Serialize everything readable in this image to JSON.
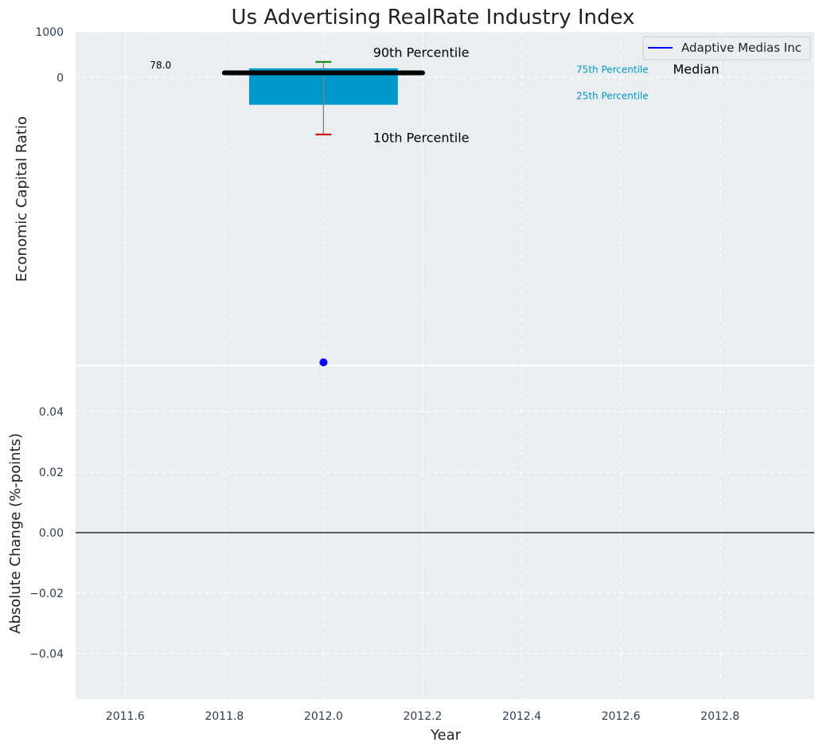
{
  "chart_data": [
    {
      "type": "boxplot",
      "panel": "top",
      "title": "Us Advertising RealRate Industry Index",
      "xlabel": "",
      "ylabel": "Economic Capital Ratio",
      "xlim": [
        2011.5,
        2012.99
      ],
      "ylim": [
        -6300,
        1000
      ],
      "y_ticks": [
        1000,
        0
      ],
      "grid": true,
      "box": {
        "x": 2012.0,
        "q1": -600,
        "q3": 200,
        "half_width": 0.15
      },
      "median": {
        "x_start": 2011.8,
        "x_end": 2012.2,
        "value": 100
      },
      "whiskers": {
        "p10": -1250,
        "p90": 340
      },
      "company_point": {
        "x": 2012.0,
        "value": -6250
      },
      "annotations": [
        {
          "text": "78.0",
          "x": 2011.65,
          "y": 200,
          "color": "#000000",
          "size": "small"
        },
        {
          "text": "90th Percentile",
          "x": 2012.1,
          "y": 450,
          "color": "#000000",
          "size": "large"
        },
        {
          "text": "10th Percentile",
          "x": 2012.1,
          "y": -1420,
          "color": "#000000",
          "size": "large"
        },
        {
          "text": "75th Percentile",
          "x": 2012.51,
          "y": 100,
          "color": "#0099c6",
          "size": "small"
        },
        {
          "text": "25th Percentile",
          "x": 2012.51,
          "y": -480,
          "color": "#0099c6",
          "size": "small"
        },
        {
          "text": "Median",
          "x": 2012.705,
          "y": 80,
          "color": "#000000",
          "size": "large"
        }
      ],
      "legend": {
        "position": "top-right",
        "entries": [
          {
            "label": "Adaptive Medias Inc",
            "color": "#0000ff"
          }
        ]
      },
      "colors": {
        "box": "#0099cc",
        "median": "#000000",
        "p90_cap": "#008000",
        "p10_cap": "#cc0000",
        "whisker": "#808080",
        "point": "#0000ff"
      }
    },
    {
      "type": "line",
      "panel": "bottom",
      "xlabel": "Year",
      "ylabel": "Absolute Change (%-points)",
      "xlim": [
        2011.5,
        2012.99
      ],
      "ylim": [
        -0.055,
        0.055
      ],
      "x_ticks": [
        "2011.6",
        "2011.8",
        "2012.0",
        "2012.2",
        "2012.4",
        "2012.6",
        "2012.8"
      ],
      "y_ticks": [
        "0.04",
        "0.02",
        "0.00",
        "−0.02",
        "−0.04"
      ],
      "y_tick_values": [
        0.04,
        0.02,
        0.0,
        -0.02,
        -0.04
      ],
      "zero_line": 0.0,
      "grid": true
    }
  ]
}
